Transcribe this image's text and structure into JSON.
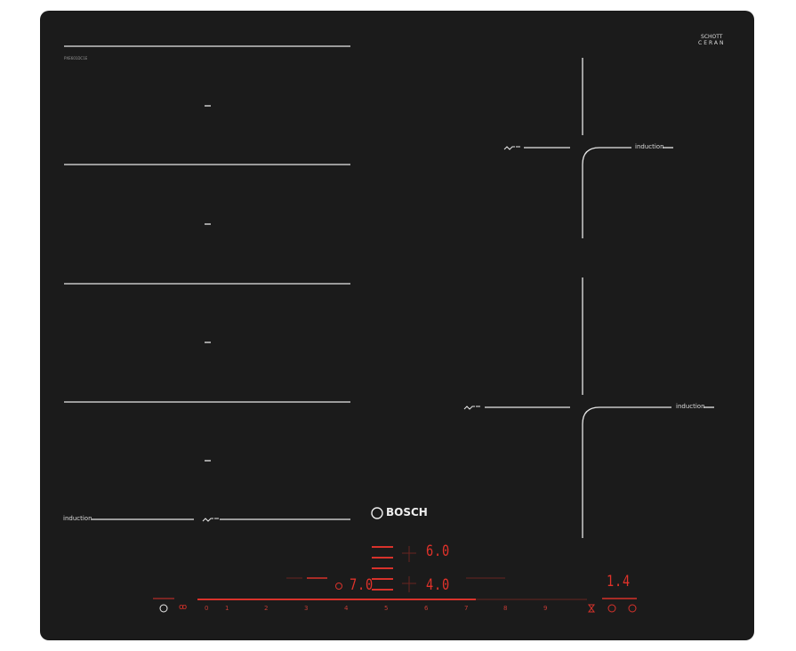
{
  "hob": {
    "model_code": "PXE601DC1E",
    "glass_logo": {
      "line1": "SCHOTT",
      "line2": "CERAN"
    },
    "brand": "BOSCH",
    "zone_label": "induction",
    "colors": {
      "glass": "#1b1b1b",
      "lines": "#e8e8e8",
      "display": "#e0322a"
    }
  },
  "controls": {
    "display_top": "6.0",
    "display_bottom": "4.0",
    "display_left": "7.0",
    "display_right": "1.4",
    "slider_numbers": [
      "0",
      "1",
      "2",
      "3",
      "4",
      "5",
      "6",
      "7",
      "8",
      "9"
    ],
    "icons": [
      "power-icon",
      "child-lock-icon",
      "timer-icon",
      "hourglass-icon",
      "clock-icon",
      "stopwatch-icon"
    ]
  }
}
